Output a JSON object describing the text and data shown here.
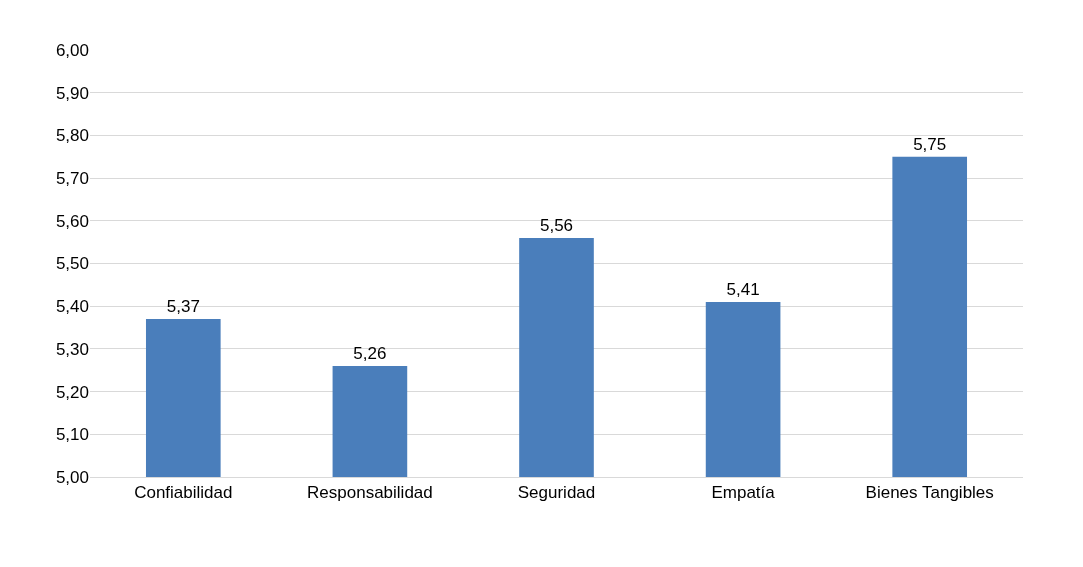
{
  "chart_data": {
    "type": "bar",
    "categories": [
      "Confiabilidad",
      "Responsabilidad",
      "Seguridad",
      "Empatía",
      "Bienes Tangibles"
    ],
    "values": [
      5.37,
      5.26,
      5.56,
      5.41,
      5.75
    ],
    "value_labels": [
      "5,37",
      "5,26",
      "5,56",
      "5,41",
      "5,75"
    ],
    "color": "#4a7ebb",
    "ylim": [
      5.0,
      6.0
    ],
    "yticks": [
      {
        "value": 5.0,
        "label": "5,00"
      },
      {
        "value": 5.1,
        "label": "5,10"
      },
      {
        "value": 5.2,
        "label": "5,20"
      },
      {
        "value": 5.3,
        "label": "5,30"
      },
      {
        "value": 5.4,
        "label": "5,40"
      },
      {
        "value": 5.5,
        "label": "5,50"
      },
      {
        "value": 5.6,
        "label": "5,60"
      },
      {
        "value": 5.7,
        "label": "5,70"
      },
      {
        "value": 5.8,
        "label": "5,80"
      },
      {
        "value": 5.9,
        "label": "5,90"
      },
      {
        "value": 6.0,
        "label": "6,00"
      }
    ],
    "grid": "y"
  }
}
